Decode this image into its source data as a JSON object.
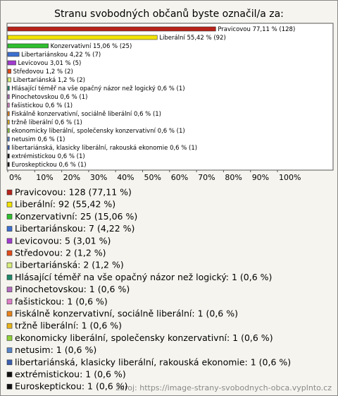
{
  "chart_data": {
    "type": "hbar",
    "title": "Stranu svobodných občanů byste označil/a za:",
    "categories": [
      "Pravicovou",
      "Liberální",
      "Konzervativní",
      "Libertariánskou",
      "Levicovou",
      "Středovou",
      "Libertariánská",
      "Hlásající téměř na vše opačný názor než logický",
      "Pinochetovskou",
      "fašistickou",
      "Fiskálně konzervativní, sociálně liberální",
      "tržně liberální",
      "ekonomicky liberální, společensky konzervativní",
      "netusim",
      "libertariánská, klasicky liberální, rakouská ekonomie",
      "extrémistickou",
      "Euroskeptickou"
    ],
    "values": [
      77.11,
      55.42,
      15.06,
      4.22,
      3.01,
      1.2,
      1.2,
      0.6,
      0.6,
      0.6,
      0.6,
      0.6,
      0.6,
      0.6,
      0.6,
      0.6,
      0.6
    ],
    "value_labels": [
      "77,11 % (128)",
      "55,42 % (92)",
      "15,06 % (25)",
      "4,22 % (7)",
      "3,01 % (5)",
      "1,2 % (2)",
      "1,2 % (2)",
      "0,6 % (1)",
      "0,6 % (1)",
      "0,6 % (1)",
      "0,6 % (1)",
      "0,6 % (1)",
      "0,6 % (1)",
      "0,6 % (1)",
      "0,6 % (1)",
      "0,6 % (1)",
      "0,6 % (1)"
    ],
    "colors": [
      "#b8231a",
      "#f2e200",
      "#2fbf2f",
      "#3c6fd0",
      "#a23ccf",
      "#e24b1a",
      "#d7ee7a",
      "#1f8a6b",
      "#b46fbf",
      "#de7fc8",
      "#e8821c",
      "#e8b51c",
      "#8fd13a",
      "#5a86c8",
      "#3b5fb0",
      "#111111",
      "#111111"
    ],
    "legend": [
      "Pravicovou: 128 (77,11 %)",
      "Liberální: 92 (55,42 %)",
      "Konzervativní: 25 (15,06 %)",
      "Libertariánskou: 7 (4,22 %)",
      "Levicovou: 5 (3,01 %)",
      "Středovou: 2 (1,2 %)",
      "Libertariánská: 2 (1,2 %)",
      "Hlásající téměř na vše opačný názor než logický: 1 (0,6 %)",
      "Pinochetovskou: 1 (0,6 %)",
      "fašistickou: 1 (0,6 %)",
      "Fiskálně konzervativní, sociálně liberální: 1 (0,6 %)",
      "tržně liberální: 1 (0,6 %)",
      "ekonomicky liberální, společensky konzervativní: 1 (0,6 %)",
      "netusim: 1 (0,6 %)",
      "libertariánská, klasicky liberální, rakouská ekonomie: 1 (0,6 %)",
      "extrémistickou: 1 (0,6 %)",
      "Euroskeptickou: 1 (0,6 %)"
    ],
    "xlim": [
      0,
      100
    ],
    "xticks": [
      {
        "value": 0,
        "label": "0%"
      },
      {
        "value": 10,
        "label": "10%"
      },
      {
        "value": 20,
        "label": "20%"
      },
      {
        "value": 30,
        "label": "30%"
      },
      {
        "value": 40,
        "label": "40%"
      },
      {
        "value": 50,
        "label": "50%"
      },
      {
        "value": 60,
        "label": "60%"
      },
      {
        "value": 70,
        "label": "70%"
      },
      {
        "value": 80,
        "label": "80%"
      },
      {
        "value": 90,
        "label": "90%"
      },
      {
        "value": 100,
        "label": "100%"
      }
    ],
    "source": "zdroj: https://image-strany-svobodnych-obca.vyplnto.cz"
  }
}
